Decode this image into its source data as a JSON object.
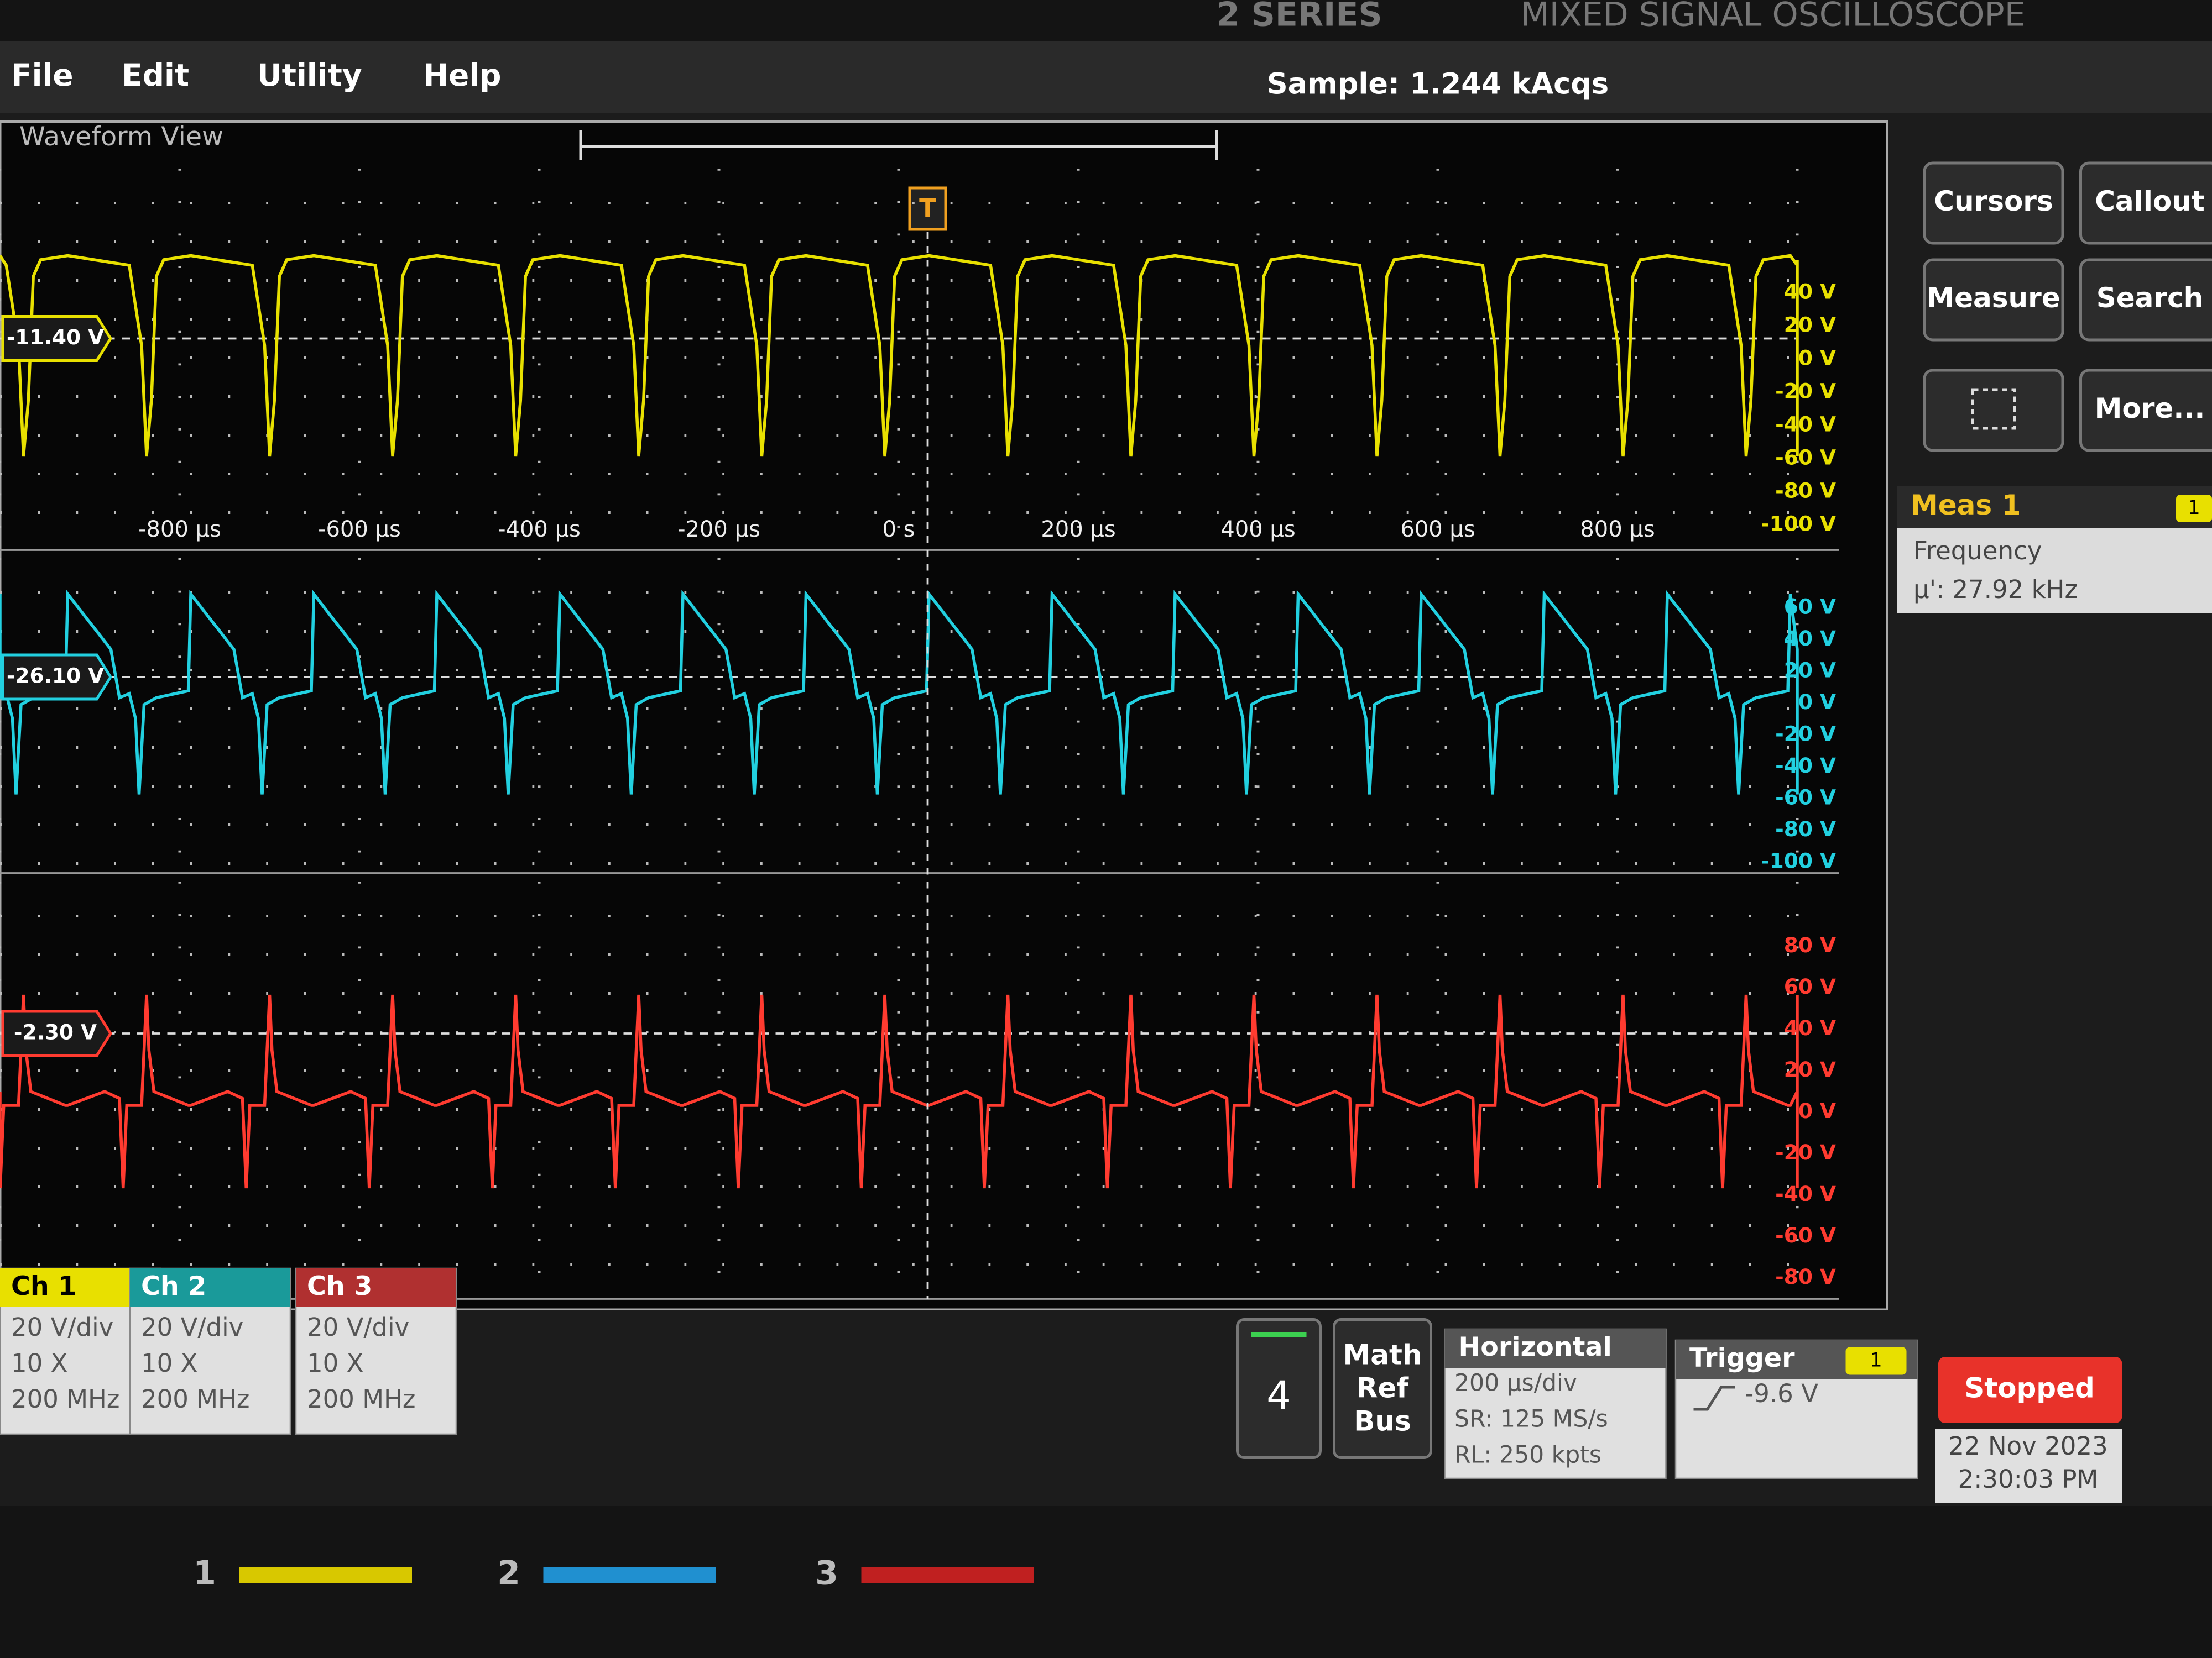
{
  "header": {
    "series": "2 SERIES",
    "name": "MIXED SIGNAL OSCILLOSCOPE"
  },
  "menu": [
    "File",
    "Edit",
    "Utility",
    "Help"
  ],
  "status": {
    "sample": "Sample: 1.244 kAcqs"
  },
  "waveform_view": {
    "title": "Waveform View",
    "trigger_marker": "T",
    "time_labels": [
      "-800 µs",
      "-600 µs",
      "-400 µs",
      "-200 µs",
      "0 s",
      "200 µs",
      "400 µs",
      "600 µs",
      "800 µs"
    ],
    "channels": [
      {
        "offset_label": "-11.40 V",
        "scale_labels": [
          "40 V",
          "20 V",
          "0 V",
          "-20 V",
          "-40 V",
          "-60 V",
          "-80 V",
          "-100 V"
        ]
      },
      {
        "offset_label": "-26.10 V",
        "scale_labels": [
          "60 V",
          "40 V",
          "20 V",
          "0 V",
          "-20 V",
          "-40 V",
          "-60 V",
          "-80 V",
          "-100 V"
        ]
      },
      {
        "offset_label": "-2.30 V",
        "scale_labels": [
          "80 V",
          "60 V",
          "40 V",
          "20 V",
          "0 V",
          "-20 V",
          "-40 V",
          "-60 V",
          "-80 V"
        ]
      }
    ]
  },
  "side_buttons": [
    "Cursors",
    "Callout",
    "Measure",
    "Search",
    "More..."
  ],
  "measurement": {
    "title": "Meas 1",
    "badge": "1",
    "name": "Frequency",
    "value": "µ': 27.92 kHz"
  },
  "channel_badges": [
    {
      "title": "Ch 1",
      "lines": [
        "20 V/div",
        "10 X",
        "200 MHz"
      ]
    },
    {
      "title": "Ch 2",
      "lines": [
        "20 V/div",
        "10 X",
        "200 MHz"
      ]
    },
    {
      "title": "Ch 3",
      "lines": [
        "20 V/div",
        "10 X",
        "200 MHz"
      ]
    }
  ],
  "add_channel": "4",
  "math_ref_bus": [
    "Math",
    "Ref",
    "Bus"
  ],
  "horizontal": {
    "title": "Horizontal",
    "lines": [
      "200 µs/div",
      "SR: 125 MS/s",
      "RL: 250 kpts"
    ]
  },
  "trigger": {
    "title": "Trigger",
    "source": "1",
    "level": "-9.6 V"
  },
  "run_state": "Stopped",
  "datetime": [
    "22 Nov 2023",
    "2:30:03 PM"
  ],
  "bezel_labels": [
    "1",
    "2",
    "3"
  ]
}
